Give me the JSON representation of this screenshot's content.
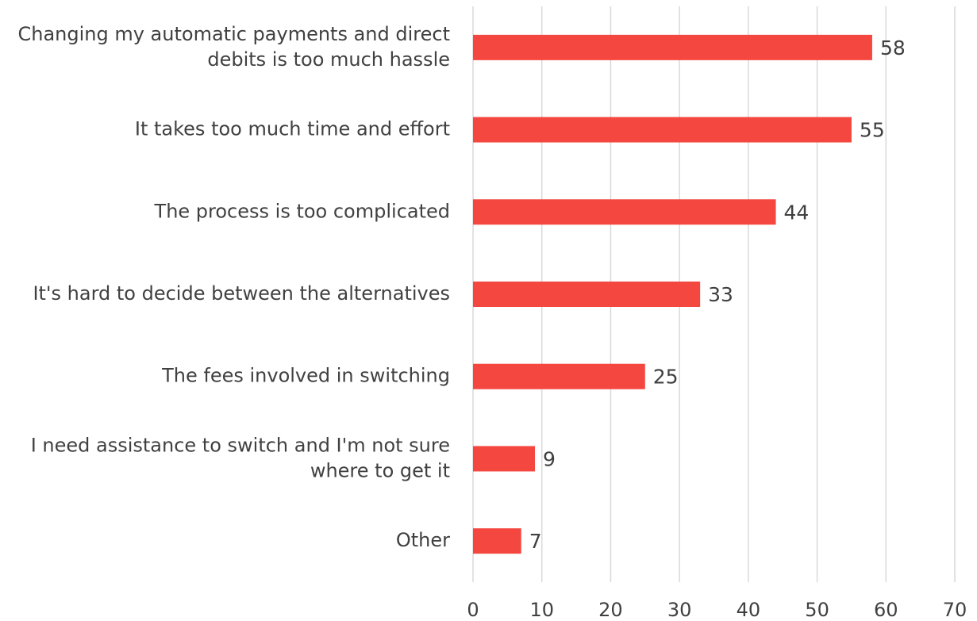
{
  "chart_data": {
    "type": "bar",
    "orientation": "horizontal",
    "categories": [
      "Changing my automatic payments and direct debits is too much hassle",
      "It takes too much time and effort",
      "The process is too complicated",
      "It's hard to decide between the alternatives",
      "The fees involved in switching",
      "I need assistance to switch and I'm not sure where to get it",
      "Other"
    ],
    "values": [
      58,
      55,
      44,
      33,
      25,
      9,
      7
    ],
    "color": "#f4473f",
    "xlim": [
      0,
      70
    ],
    "xticks": [
      0,
      10,
      20,
      30,
      40,
      50,
      60,
      70
    ],
    "grid": true
  }
}
